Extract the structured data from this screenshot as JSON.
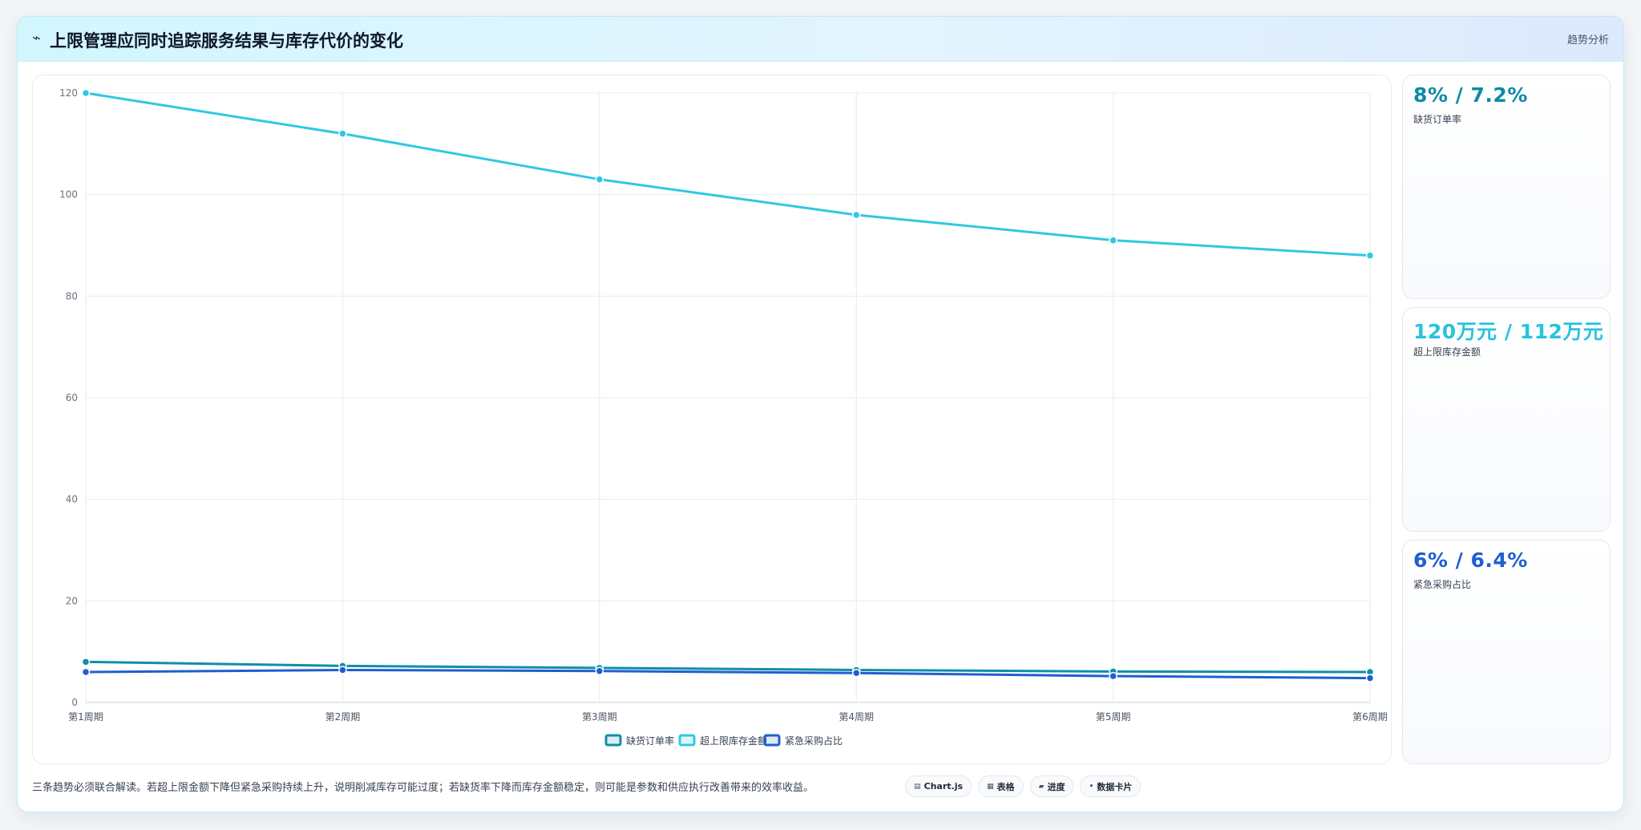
{
  "header": {
    "icon": "trend-line-icon",
    "icon_glyph": "⌁",
    "title": "上限管理应同时追踪服务结果与库存代价的变化",
    "tag": "趋势分析"
  },
  "chart_data": {
    "type": "line",
    "categories": [
      "第1周期",
      "第2周期",
      "第3周期",
      "第4周期",
      "第5周期",
      "第6周期"
    ],
    "series": [
      {
        "name": "缺货订单率",
        "values": [
          8,
          7.2,
          6.8,
          6.4,
          6.1,
          6.0
        ],
        "color": "#0e8fa8"
      },
      {
        "name": "超上限库存金额",
        "values": [
          120,
          112,
          103,
          96,
          91,
          88
        ],
        "color": "#2ec9e0"
      },
      {
        "name": "紧急采购占比",
        "values": [
          6,
          6.4,
          6.2,
          5.8,
          5.2,
          4.8
        ],
        "color": "#1f5fcf"
      }
    ],
    "ylim": [
      0,
      120
    ],
    "yticks": [
      0,
      20,
      40,
      60,
      80,
      100,
      120
    ],
    "grid": true,
    "legend_position": "bottom"
  },
  "kpis": [
    {
      "value": "8% / 7.2%",
      "label": "缺货订单率",
      "color": "#0e8aa3"
    },
    {
      "value": "120万元 / 112万元",
      "label": "超上限库存金额",
      "color": "#27c3dd"
    },
    {
      "value": "6% / 6.4%",
      "label": "紧急采购占比",
      "color": "#1f5fcf"
    }
  ],
  "note": "三条趋势必须联合解读。若超上限金额下降但紧急采购持续上升，说明削减库存可能过度；若缺货率下降而库存金额稳定，则可能是参数和供应执行改善带来的效率收益。",
  "chips": [
    {
      "icon": "chart-icon",
      "glyph": "▤",
      "label": "Chart.js"
    },
    {
      "icon": "table-icon",
      "glyph": "▦",
      "label": "表格"
    },
    {
      "icon": "progress-icon",
      "glyph": "▰",
      "label": "进度"
    },
    {
      "icon": "data-card-icon",
      "glyph": "•",
      "label": "数据卡片"
    }
  ]
}
